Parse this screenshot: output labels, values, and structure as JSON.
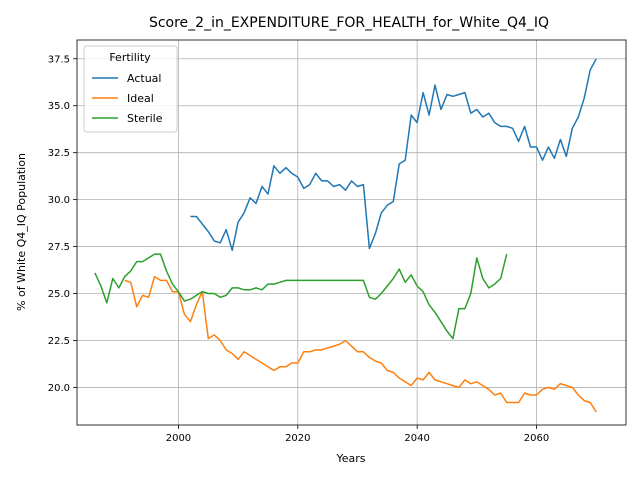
{
  "chart_data": {
    "type": "line",
    "title": "Score_2_in_EXPENDITURE_FOR_HEALTH_for_White_Q4_IQ",
    "xlabel": "Years",
    "ylabel": "% of White Q4_IQ Population",
    "xlim": [
      1983,
      2075
    ],
    "ylim": [
      18.0,
      38.5
    ],
    "grid": true,
    "legend": {
      "title": "Fertility",
      "placement": "top-left"
    },
    "xticks": [
      2000,
      2020,
      2040,
      2060
    ],
    "yticks": [
      20.0,
      22.5,
      25.0,
      27.5,
      30.0,
      32.5,
      35.0,
      37.5
    ],
    "series": [
      {
        "name": "Actual",
        "color": "#1f77b4",
        "x": [
          2002,
          2003,
          2004,
          2005,
          2006,
          2007,
          2008,
          2009,
          2010,
          2011,
          2012,
          2013,
          2014,
          2015,
          2016,
          2017,
          2018,
          2019,
          2020,
          2021,
          2022,
          2023,
          2024,
          2025,
          2026,
          2027,
          2028,
          2029,
          2030,
          2031,
          2032,
          2033,
          2034,
          2035,
          2036,
          2037,
          2038,
          2039,
          2040,
          2041,
          2042,
          2043,
          2044,
          2045,
          2046,
          2047,
          2048,
          2049,
          2050,
          2051,
          2052,
          2053,
          2054,
          2055,
          2056,
          2057,
          2058,
          2059,
          2060,
          2061,
          2062,
          2063,
          2064,
          2065,
          2066,
          2067,
          2068,
          2069,
          2070
        ],
        "y": [
          29.1,
          29.1,
          28.7,
          28.3,
          27.8,
          27.7,
          28.4,
          27.3,
          28.8,
          29.3,
          30.1,
          29.8,
          30.7,
          30.3,
          31.8,
          31.4,
          31.7,
          31.4,
          31.2,
          30.6,
          30.8,
          31.4,
          31.0,
          31.0,
          30.7,
          30.8,
          30.5,
          31.0,
          30.7,
          30.8,
          27.4,
          28.2,
          29.3,
          29.7,
          29.9,
          31.9,
          32.1,
          34.5,
          34.1,
          35.7,
          34.5,
          36.1,
          34.8,
          35.6,
          35.5,
          35.6,
          35.7,
          34.6,
          34.8,
          34.4,
          34.6,
          34.1,
          33.9,
          33.9,
          33.8,
          33.1,
          33.9,
          32.8,
          32.8,
          32.1,
          32.8,
          32.2,
          33.2,
          32.3,
          33.8,
          34.4,
          35.4,
          36.9,
          37.5
        ]
      },
      {
        "name": "Ideal",
        "color": "#ff7f0e",
        "x": [
          1991,
          1992,
          1993,
          1994,
          1995,
          1996,
          1997,
          1998,
          1999,
          2000,
          2001,
          2002,
          2003,
          2004,
          2005,
          2006,
          2007,
          2008,
          2009,
          2010,
          2011,
          2012,
          2013,
          2014,
          2015,
          2016,
          2017,
          2018,
          2019,
          2020,
          2021,
          2022,
          2023,
          2024,
          2025,
          2026,
          2027,
          2028,
          2029,
          2030,
          2031,
          2032,
          2033,
          2034,
          2035,
          2036,
          2037,
          2038,
          2039,
          2040,
          2041,
          2042,
          2043,
          2044,
          2045,
          2046,
          2047,
          2048,
          2049,
          2050,
          2051,
          2052,
          2053,
          2054,
          2055,
          2056,
          2057,
          2058,
          2059,
          2060,
          2061,
          2062,
          2063,
          2064,
          2065,
          2066,
          2067,
          2068,
          2069,
          2070
        ],
        "y": [
          25.7,
          25.6,
          24.3,
          24.9,
          24.8,
          25.9,
          25.7,
          25.7,
          25.1,
          25.1,
          23.9,
          23.5,
          24.4,
          25.1,
          22.6,
          22.8,
          22.5,
          22.0,
          21.8,
          21.5,
          21.9,
          21.7,
          21.5,
          21.3,
          21.1,
          20.9,
          21.1,
          21.1,
          21.3,
          21.3,
          21.9,
          21.9,
          22.0,
          22.0,
          22.1,
          22.2,
          22.3,
          22.5,
          22.2,
          21.9,
          21.9,
          21.6,
          21.4,
          21.3,
          20.9,
          20.8,
          20.5,
          20.3,
          20.1,
          20.5,
          20.4,
          20.8,
          20.4,
          20.3,
          20.2,
          20.1,
          20.0,
          20.4,
          20.2,
          20.3,
          20.1,
          19.9,
          19.6,
          19.7,
          19.2,
          19.2,
          19.2,
          19.7,
          19.6,
          19.6,
          19.9,
          20.0,
          19.9,
          20.2,
          20.1,
          20.0,
          19.6,
          19.3,
          19.2,
          18.7
        ]
      },
      {
        "name": "Sterile",
        "color": "#2ca02c",
        "x": [
          1986,
          1987,
          1988,
          1989,
          1990,
          1991,
          1992,
          1993,
          1994,
          1995,
          1996,
          1997,
          1998,
          1999,
          2000,
          2001,
          2002,
          2003,
          2004,
          2005,
          2006,
          2007,
          2008,
          2009,
          2010,
          2011,
          2012,
          2013,
          2014,
          2015,
          2016,
          2017,
          2018,
          2019,
          2020,
          2021,
          2022,
          2023,
          2024,
          2025,
          2026,
          2027,
          2028,
          2029,
          2030,
          2031,
          2032,
          2033,
          2034,
          2035,
          2036,
          2037,
          2038,
          2039,
          2040,
          2041,
          2042,
          2043,
          2044,
          2045,
          2046,
          2047,
          2048,
          2049,
          2050,
          2051,
          2052,
          2053,
          2054,
          2055
        ],
        "y": [
          26.1,
          25.4,
          24.5,
          25.8,
          25.3,
          25.9,
          26.2,
          26.7,
          26.7,
          26.9,
          27.1,
          27.1,
          26.2,
          25.5,
          25.1,
          24.6,
          24.7,
          24.9,
          25.1,
          25.0,
          25.0,
          24.8,
          24.9,
          25.3,
          25.3,
          25.2,
          25.2,
          25.3,
          25.2,
          25.5,
          25.5,
          25.6,
          25.7,
          25.7,
          25.7,
          25.7,
          25.7,
          25.7,
          25.7,
          25.7,
          25.7,
          25.7,
          25.7,
          25.7,
          25.7,
          25.7,
          24.8,
          24.7,
          25.0,
          25.4,
          25.8,
          26.3,
          25.6,
          26.0,
          25.4,
          25.1,
          24.4,
          24.0,
          23.5,
          23.0,
          22.6,
          24.2,
          24.2,
          25.0,
          26.9,
          25.8,
          25.3,
          25.5,
          25.8,
          27.1
        ]
      }
    ]
  }
}
